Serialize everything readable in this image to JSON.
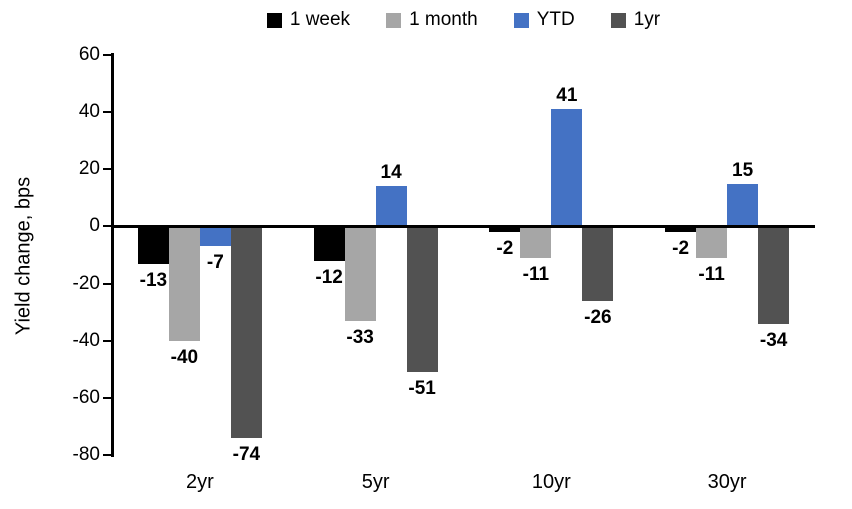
{
  "chart_data": {
    "type": "bar",
    "title": "",
    "xlabel": "",
    "ylabel": "Yield change, bps",
    "categories": [
      "2yr",
      "5yr",
      "10yr",
      "30yr"
    ],
    "series": [
      {
        "name": "1 week",
        "color": "#000000",
        "values": [
          -13,
          -12,
          -2,
          -2
        ]
      },
      {
        "name": "1 month",
        "color": "#A6A6A6",
        "values": [
          -40,
          -33,
          -11,
          -11
        ]
      },
      {
        "name": "YTD",
        "color": "#4472C4",
        "values": [
          -7,
          14,
          41,
          15
        ]
      },
      {
        "name": "1yr",
        "color": "#525252",
        "values": [
          -74,
          -51,
          -26,
          -34
        ]
      }
    ],
    "ylim": [
      -80,
      60
    ],
    "ytick_step": 20,
    "yticks": [
      60,
      40,
      20,
      0,
      -20,
      -40,
      -60,
      -80
    ],
    "grid": false,
    "legend_position": "top",
    "data_labels": true,
    "axis_color": "#000000"
  }
}
